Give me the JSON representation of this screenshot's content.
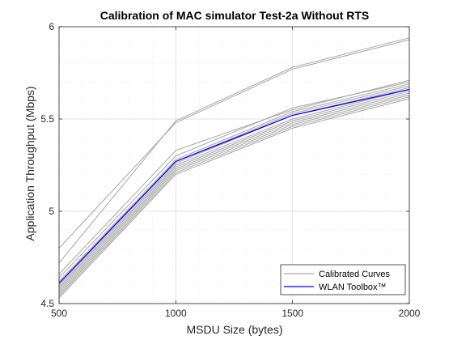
{
  "chart_data": {
    "type": "line",
    "title": "Calibration of MAC simulator Test-2a Without RTS",
    "xlabel": "MSDU Size (bytes)",
    "ylabel": "Application Throughput (Mbps)",
    "x": [
      500,
      1000,
      1500,
      2000
    ],
    "x_ticks": [
      "500",
      "1000",
      "1500",
      "2000"
    ],
    "y_ticks": [
      "4.5",
      "5",
      "5.5",
      "6"
    ],
    "xlim": [
      500,
      2000
    ],
    "ylim": [
      4.5,
      6
    ],
    "grid": true,
    "minor_grid": true,
    "legend_position": "bottom-right",
    "legend": [
      "Calibrated Curves",
      "WLAN Toolbox™"
    ],
    "colors": {
      "calibrated": "#a6a6a6",
      "toolbox": "#0000ff"
    },
    "series": [
      {
        "name": "Calibrated Curves",
        "group": "calibrated",
        "values": [
          4.8,
          5.48,
          5.77,
          5.93
        ]
      },
      {
        "name": "Calibrated Curves",
        "group": "calibrated",
        "values": [
          4.72,
          5.49,
          5.78,
          5.94
        ]
      },
      {
        "name": "Calibrated Curves",
        "group": "calibrated",
        "values": [
          4.66,
          5.33,
          5.55,
          5.71
        ]
      },
      {
        "name": "Calibrated Curves",
        "group": "calibrated",
        "values": [
          4.64,
          5.3,
          5.56,
          5.7
        ]
      },
      {
        "name": "Calibrated Curves",
        "group": "calibrated",
        "values": [
          4.62,
          5.28,
          5.54,
          5.69
        ]
      },
      {
        "name": "Calibrated Curves",
        "group": "calibrated",
        "values": [
          4.6,
          5.27,
          5.53,
          5.68
        ]
      },
      {
        "name": "Calibrated Curves",
        "group": "calibrated",
        "values": [
          4.59,
          5.26,
          5.52,
          5.67
        ]
      },
      {
        "name": "Calibrated Curves",
        "group": "calibrated",
        "values": [
          4.58,
          5.25,
          5.5,
          5.66
        ]
      },
      {
        "name": "Calibrated Curves",
        "group": "calibrated",
        "values": [
          4.57,
          5.24,
          5.49,
          5.65
        ]
      },
      {
        "name": "Calibrated Curves",
        "group": "calibrated",
        "values": [
          4.56,
          5.23,
          5.48,
          5.64
        ]
      },
      {
        "name": "Calibrated Curves",
        "group": "calibrated",
        "values": [
          4.55,
          5.22,
          5.47,
          5.63
        ]
      },
      {
        "name": "Calibrated Curves",
        "group": "calibrated",
        "values": [
          4.54,
          5.21,
          5.46,
          5.62
        ]
      },
      {
        "name": "Calibrated Curves",
        "group": "calibrated",
        "values": [
          4.53,
          5.2,
          5.45,
          5.61
        ]
      },
      {
        "name": "WLAN Toolbox™",
        "group": "toolbox",
        "values": [
          4.61,
          5.27,
          5.52,
          5.66
        ]
      }
    ]
  }
}
